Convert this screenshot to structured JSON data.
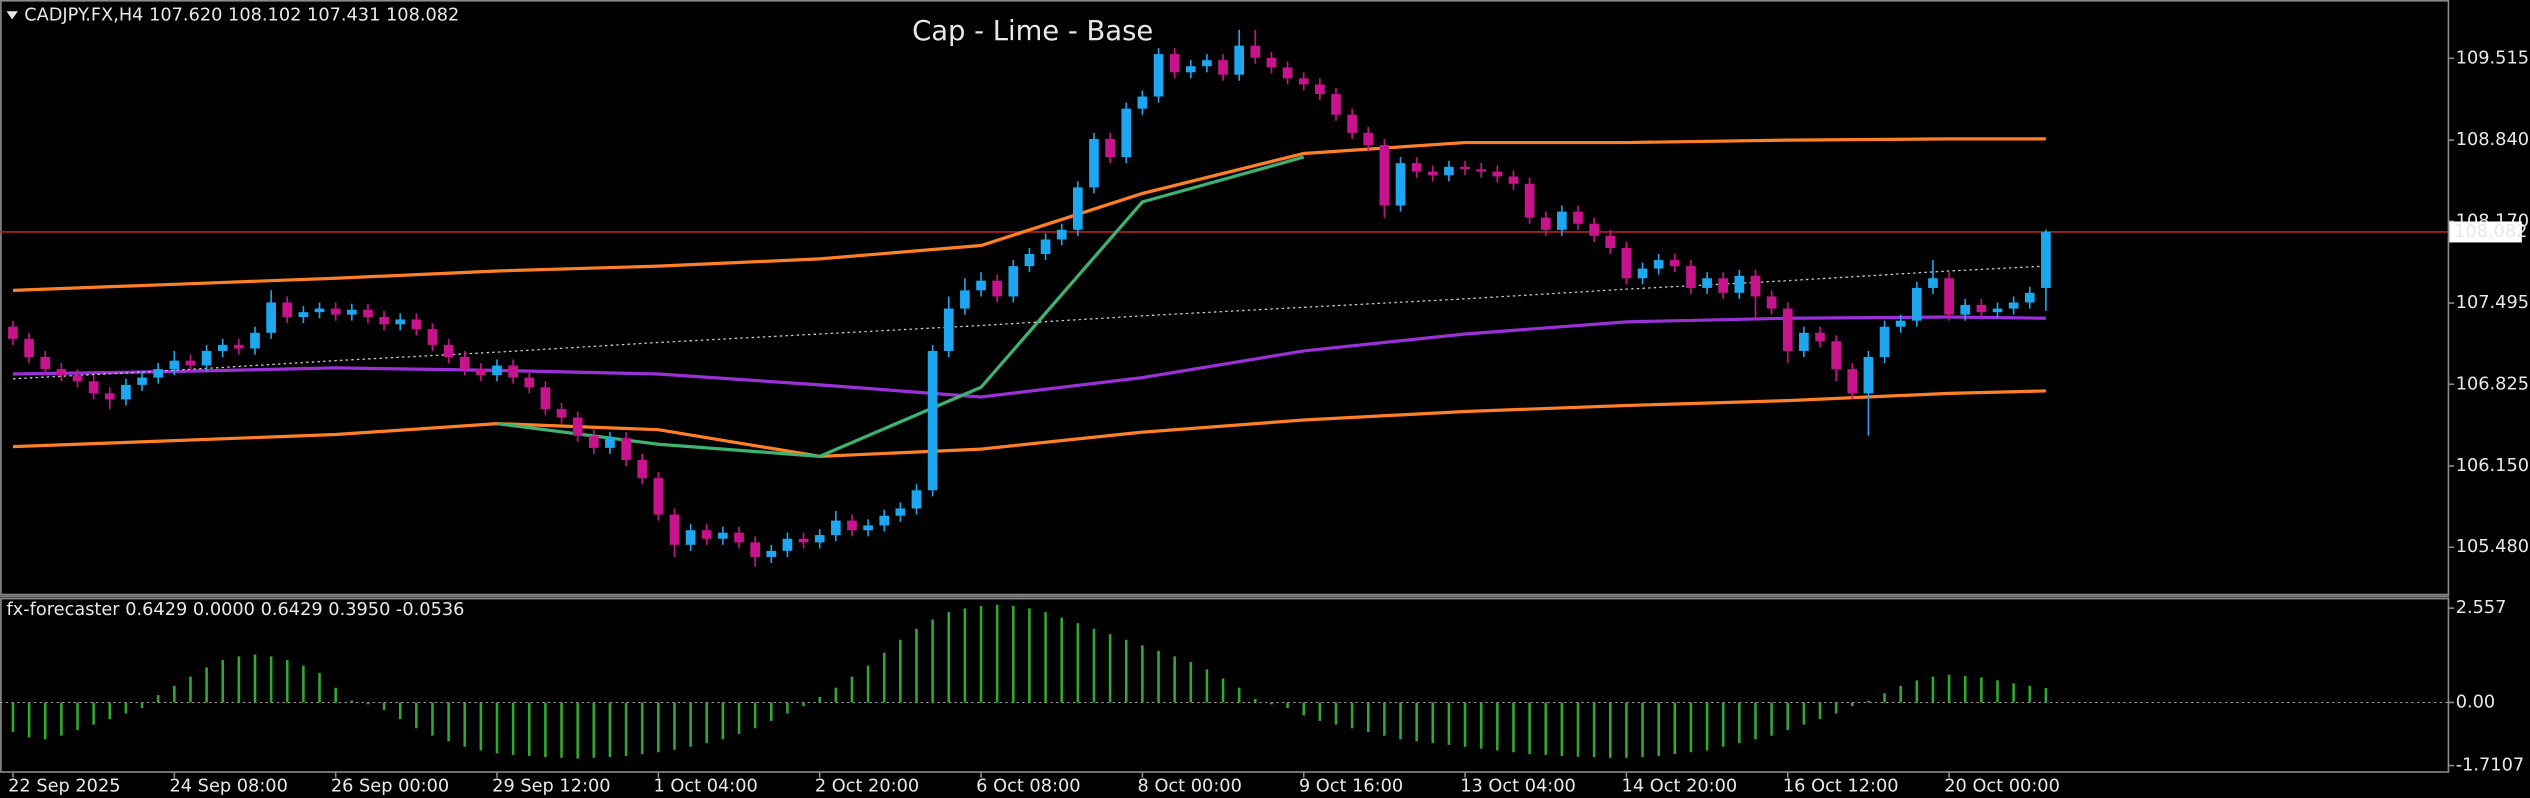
{
  "chart_data": [
    {
      "type": "candlestick",
      "header": "CADJPY.FX,H4  107.620 108.102 107.431 108.082",
      "title": "Cap - Lime - Base",
      "title_color": "#3cb371",
      "categories": [
        "22 Sep 2025",
        null,
        null,
        null,
        null,
        null,
        null,
        null,
        null,
        null,
        "24 Sep 08:00",
        null,
        null,
        null,
        null,
        null,
        null,
        null,
        null,
        null,
        "26 Sep 00:00",
        null,
        null,
        null,
        null,
        null,
        null,
        null,
        null,
        null,
        "29 Sep 12:00",
        null,
        null,
        null,
        null,
        null,
        null,
        null,
        null,
        null,
        "1 Oct 04:00",
        null,
        null,
        null,
        null,
        null,
        null,
        null,
        null,
        null,
        "2 Oct 20:00",
        null,
        null,
        null,
        null,
        null,
        null,
        null,
        null,
        null,
        "6 Oct 08:00",
        null,
        null,
        null,
        null,
        null,
        null,
        null,
        null,
        null,
        "8 Oct 00:00",
        null,
        null,
        null,
        null,
        null,
        null,
        null,
        null,
        null,
        "9 Oct 16:00",
        null,
        null,
        null,
        null,
        null,
        null,
        null,
        null,
        null,
        "13 Oct 04:00",
        null,
        null,
        null,
        null,
        null,
        null,
        null,
        null,
        null,
        "14 Oct 20:00",
        null,
        null,
        null,
        null,
        null,
        null,
        null,
        null,
        null,
        "16 Oct 12:00",
        null,
        null,
        null,
        null,
        null,
        null,
        null,
        null,
        null,
        "20 Oct 00:00",
        null,
        null,
        null,
        null,
        null,
        null
      ],
      "ohlc": [
        [
          107.3,
          107.35,
          107.15,
          107.2
        ],
        [
          107.2,
          107.25,
          107.0,
          107.05
        ],
        [
          107.05,
          107.1,
          106.9,
          106.95
        ],
        [
          106.95,
          107.0,
          106.85,
          106.9
        ],
        [
          106.9,
          106.95,
          106.8,
          106.85
        ],
        [
          106.85,
          106.9,
          106.7,
          106.75
        ],
        [
          106.75,
          106.8,
          106.62,
          106.7
        ],
        [
          106.7,
          106.87,
          106.65,
          106.82
        ],
        [
          106.82,
          106.93,
          106.77,
          106.88
        ],
        [
          106.88,
          107.0,
          106.83,
          106.95
        ],
        [
          106.95,
          107.1,
          106.9,
          107.02
        ],
        [
          107.02,
          107.07,
          106.93,
          106.98
        ],
        [
          106.98,
          107.15,
          106.93,
          107.1
        ],
        [
          107.1,
          107.2,
          107.05,
          107.15
        ],
        [
          107.15,
          107.2,
          107.07,
          107.12
        ],
        [
          107.12,
          107.3,
          107.07,
          107.25
        ],
        [
          107.25,
          107.6,
          107.2,
          107.5
        ],
        [
          107.5,
          107.55,
          107.33,
          107.38
        ],
        [
          107.38,
          107.47,
          107.33,
          107.42
        ],
        [
          107.42,
          107.5,
          107.37,
          107.45
        ],
        [
          107.45,
          107.5,
          107.35,
          107.4
        ],
        [
          107.4,
          107.49,
          107.35,
          107.44
        ],
        [
          107.44,
          107.49,
          107.33,
          107.38
        ],
        [
          107.38,
          107.43,
          107.27,
          107.32
        ],
        [
          107.32,
          107.41,
          107.27,
          107.36
        ],
        [
          107.36,
          107.41,
          107.23,
          107.28
        ],
        [
          107.28,
          107.33,
          107.1,
          107.15
        ],
        [
          107.15,
          107.2,
          107.0,
          107.05
        ],
        [
          107.05,
          107.1,
          106.9,
          106.95
        ],
        [
          106.95,
          107.0,
          106.85,
          106.9
        ],
        [
          106.9,
          107.03,
          106.85,
          106.98
        ],
        [
          106.98,
          107.03,
          106.83,
          106.88
        ],
        [
          106.88,
          106.93,
          106.75,
          106.8
        ],
        [
          106.8,
          106.85,
          106.57,
          106.62
        ],
        [
          106.62,
          106.67,
          106.5,
          106.55
        ],
        [
          106.55,
          106.6,
          106.35,
          106.4
        ],
        [
          106.4,
          106.45,
          106.25,
          106.3
        ],
        [
          106.3,
          106.43,
          106.25,
          106.38
        ],
        [
          106.38,
          106.43,
          106.15,
          106.2
        ],
        [
          106.2,
          106.25,
          106.0,
          106.05
        ],
        [
          106.05,
          106.1,
          105.7,
          105.75
        ],
        [
          105.75,
          105.8,
          105.4,
          105.5
        ],
        [
          105.5,
          105.67,
          105.45,
          105.62
        ],
        [
          105.62,
          105.67,
          105.5,
          105.55
        ],
        [
          105.55,
          105.65,
          105.5,
          105.6
        ],
        [
          105.6,
          105.65,
          105.47,
          105.52
        ],
        [
          105.52,
          105.57,
          105.32,
          105.4
        ],
        [
          105.4,
          105.5,
          105.35,
          105.45
        ],
        [
          105.45,
          105.6,
          105.4,
          105.55
        ],
        [
          105.55,
          105.6,
          105.47,
          105.52
        ],
        [
          105.52,
          105.63,
          105.47,
          105.58
        ],
        [
          105.58,
          105.78,
          105.53,
          105.7
        ],
        [
          105.7,
          105.75,
          105.57,
          105.62
        ],
        [
          105.62,
          105.71,
          105.57,
          105.66
        ],
        [
          105.66,
          105.79,
          105.61,
          105.74
        ],
        [
          105.74,
          105.85,
          105.69,
          105.8
        ],
        [
          105.8,
          106.0,
          105.75,
          105.95
        ],
        [
          105.95,
          107.15,
          105.9,
          107.1
        ],
        [
          107.1,
          107.55,
          107.05,
          107.45
        ],
        [
          107.45,
          107.7,
          107.4,
          107.6
        ],
        [
          107.6,
          107.75,
          107.55,
          107.68
        ],
        [
          107.68,
          107.73,
          107.5,
          107.55
        ],
        [
          107.55,
          107.85,
          107.5,
          107.8
        ],
        [
          107.8,
          107.95,
          107.75,
          107.9
        ],
        [
          107.9,
          108.07,
          107.85,
          108.02
        ],
        [
          108.02,
          108.15,
          107.97,
          108.1
        ],
        [
          108.1,
          108.5,
          108.05,
          108.45
        ],
        [
          108.45,
          108.9,
          108.4,
          108.85
        ],
        [
          108.85,
          108.9,
          108.65,
          108.7
        ],
        [
          108.7,
          109.15,
          108.65,
          109.1
        ],
        [
          109.1,
          109.25,
          109.05,
          109.2
        ],
        [
          109.2,
          109.6,
          109.15,
          109.55
        ],
        [
          109.55,
          109.6,
          109.35,
          109.4
        ],
        [
          109.4,
          109.5,
          109.35,
          109.45
        ],
        [
          109.45,
          109.55,
          109.4,
          109.5
        ],
        [
          109.5,
          109.55,
          109.33,
          109.38
        ],
        [
          109.38,
          109.75,
          109.33,
          109.62
        ],
        [
          109.62,
          109.75,
          109.47,
          109.52
        ],
        [
          109.52,
          109.57,
          109.39,
          109.44
        ],
        [
          109.44,
          109.49,
          109.3,
          109.35
        ],
        [
          109.35,
          109.4,
          109.25,
          109.3
        ],
        [
          109.3,
          109.35,
          109.17,
          109.22
        ],
        [
          109.22,
          109.27,
          109.0,
          109.05
        ],
        [
          109.05,
          109.1,
          108.85,
          108.9
        ],
        [
          108.9,
          108.95,
          108.75,
          108.8
        ],
        [
          108.8,
          108.85,
          108.2,
          108.3
        ],
        [
          108.3,
          108.7,
          108.25,
          108.65
        ],
        [
          108.65,
          108.7,
          108.53,
          108.58
        ],
        [
          108.58,
          108.63,
          108.5,
          108.55
        ],
        [
          108.55,
          108.67,
          108.5,
          108.62
        ],
        [
          108.62,
          108.67,
          108.55,
          108.6
        ],
        [
          108.6,
          108.65,
          108.53,
          108.58
        ],
        [
          108.58,
          108.63,
          108.49,
          108.54
        ],
        [
          108.54,
          108.59,
          108.43,
          108.48
        ],
        [
          108.48,
          108.53,
          108.15,
          108.2
        ],
        [
          108.2,
          108.25,
          108.05,
          108.1
        ],
        [
          108.1,
          108.3,
          108.05,
          108.25
        ],
        [
          108.25,
          108.3,
          108.1,
          108.15
        ],
        [
          108.15,
          108.2,
          108.0,
          108.05
        ],
        [
          108.05,
          108.1,
          107.9,
          107.95
        ],
        [
          107.95,
          108.0,
          107.65,
          107.7
        ],
        [
          107.7,
          107.83,
          107.65,
          107.78
        ],
        [
          107.78,
          107.9,
          107.73,
          107.85
        ],
        [
          107.85,
          107.9,
          107.75,
          107.8
        ],
        [
          107.8,
          107.85,
          107.57,
          107.62
        ],
        [
          107.62,
          107.75,
          107.57,
          107.7
        ],
        [
          107.7,
          107.75,
          107.53,
          107.58
        ],
        [
          107.58,
          107.77,
          107.53,
          107.72
        ],
        [
          107.72,
          107.77,
          107.35,
          107.55
        ],
        [
          107.55,
          107.6,
          107.4,
          107.45
        ],
        [
          107.45,
          107.5,
          107.0,
          107.1
        ],
        [
          107.1,
          107.3,
          107.05,
          107.25
        ],
        [
          107.25,
          107.3,
          107.13,
          107.18
        ],
        [
          107.18,
          107.23,
          106.85,
          106.95
        ],
        [
          106.95,
          107.0,
          106.7,
          106.75
        ],
        [
          106.75,
          107.1,
          106.4,
          107.05
        ],
        [
          107.05,
          107.35,
          107.0,
          107.3
        ],
        [
          107.3,
          107.4,
          107.25,
          107.35
        ],
        [
          107.35,
          107.67,
          107.3,
          107.62
        ],
        [
          107.62,
          107.85,
          107.57,
          107.7
        ],
        [
          107.7,
          107.75,
          107.35,
          107.4
        ],
        [
          107.4,
          107.53,
          107.35,
          107.48
        ],
        [
          107.48,
          107.53,
          107.37,
          107.42
        ],
        [
          107.42,
          107.5,
          107.37,
          107.45
        ],
        [
          107.45,
          107.55,
          107.4,
          107.5
        ],
        [
          107.5,
          107.63,
          107.45,
          107.58
        ],
        [
          107.62,
          108.102,
          107.431,
          108.082
        ]
      ],
      "up_color": "#1ea7ee",
      "down_color": "#c8148c",
      "ylim": [
        105.096,
        109.97
      ],
      "yticks": [
        109.515,
        {
          "value": 108.84,
          "label": "108.840"
        },
        {
          "value": 108.17,
          "label": "108.170"
        },
        107.495,
        106.825,
        {
          "value": 106.15,
          "label": "106.150"
        },
        {
          "value": 105.48,
          "label": "105.480"
        }
      ],
      "price_line": 108.082,
      "price_line_color": "#b22222",
      "overlay_x": [
        0,
        10,
        20,
        30,
        40,
        50,
        60,
        70,
        80,
        90,
        100,
        110,
        120,
        126
      ],
      "overlays": [
        {
          "color": "#ff7f27",
          "style": "solid",
          "values": [
            107.6,
            107.65,
            107.7,
            107.76,
            107.8,
            107.86,
            107.97,
            108.4,
            108.73,
            108.82,
            108.82,
            108.84,
            108.85,
            108.85
          ]
        },
        {
          "color": "#ff7f27",
          "style": "solid",
          "values": [
            106.31,
            106.36,
            106.41,
            106.5,
            106.45,
            106.23,
            106.29,
            106.43,
            106.53,
            106.6,
            106.65,
            106.69,
            106.75,
            106.77
          ]
        },
        {
          "color": "#9b30d9",
          "style": "solid",
          "values": [
            106.91,
            106.93,
            106.96,
            106.94,
            106.91,
            106.82,
            106.72,
            106.88,
            107.1,
            107.24,
            107.34,
            107.37,
            107.38,
            107.37
          ]
        },
        {
          "color": "#3cb371",
          "style": "solid",
          "values": [
            null,
            null,
            null,
            106.5,
            106.33,
            106.23,
            106.8,
            108.33,
            108.7,
            null,
            null,
            null,
            null,
            null
          ]
        },
        {
          "color": "#cccccc",
          "style": "dotted",
          "values": [
            106.87,
            106.94,
            107.02,
            107.09,
            107.17,
            107.24,
            107.31,
            107.39,
            107.46,
            107.53,
            107.61,
            107.68,
            107.76,
            107.8
          ]
        }
      ]
    },
    {
      "type": "bar",
      "header": "fx-forecaster 0.6429 0.0000 0.6429 0.3950 -0.0536",
      "color": "#32a832",
      "values": [
        -0.8,
        -0.95,
        -1.0,
        -0.9,
        -0.75,
        -0.6,
        -0.45,
        -0.3,
        -0.15,
        0.2,
        0.45,
        0.7,
        0.95,
        1.15,
        1.25,
        1.3,
        1.25,
        1.15,
        1.0,
        0.8,
        0.4,
        0.05,
        -0.05,
        -0.2,
        -0.45,
        -0.7,
        -0.9,
        -1.05,
        -1.2,
        -1.3,
        -1.38,
        -1.42,
        -1.45,
        -1.48,
        -1.5,
        -1.52,
        -1.5,
        -1.48,
        -1.45,
        -1.4,
        -1.35,
        -1.28,
        -1.2,
        -1.1,
        -1.0,
        -0.85,
        -0.7,
        -0.5,
        -0.3,
        -0.1,
        0.15,
        0.4,
        0.7,
        1.0,
        1.35,
        1.7,
        2.0,
        2.25,
        2.45,
        2.55,
        2.62,
        2.65,
        2.62,
        2.55,
        2.45,
        2.3,
        2.15,
        2.0,
        1.85,
        1.7,
        1.55,
        1.4,
        1.25,
        1.1,
        0.9,
        0.65,
        0.4,
        0.1,
        -0.05,
        -0.15,
        -0.35,
        -0.5,
        -0.6,
        -0.7,
        -0.8,
        -0.9,
        -1.0,
        -1.05,
        -1.1,
        -1.15,
        -1.2,
        -1.25,
        -1.3,
        -1.35,
        -1.4,
        -1.42,
        -1.45,
        -1.47,
        -1.48,
        -1.5,
        -1.5,
        -1.48,
        -1.45,
        -1.4,
        -1.35,
        -1.3,
        -1.2,
        -1.1,
        -1.0,
        -0.9,
        -0.75,
        -0.6,
        -0.45,
        -0.3,
        -0.1,
        0.05,
        0.25,
        0.45,
        0.6,
        0.7,
        0.75,
        0.72,
        0.68,
        0.6,
        0.52,
        0.45,
        0.395
      ],
      "ylim": [
        -1.864,
        2.817
      ],
      "yticks": [
        2.557,
        {
          "value": 0,
          "label": "0.00"
        },
        -1.7107
      ],
      "zero_line": true
    }
  ]
}
